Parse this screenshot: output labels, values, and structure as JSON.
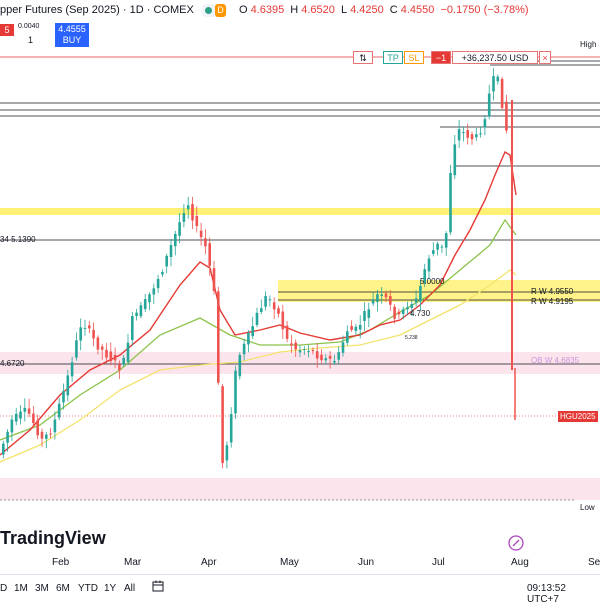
{
  "header": {
    "title": "pper Futures (Sep 2025) · 1D · COMEX",
    "ohlc": {
      "open_label": "O",
      "open": "4.6395",
      "high_label": "H",
      "high": "4.6520",
      "low_label": "L",
      "low": "4.4250",
      "close_label": "C",
      "close": "4.4550",
      "change": "−0.1750 (−3.78%)"
    },
    "interval_badge": "D"
  },
  "trade_panel": {
    "sell_label": "5",
    "spread": "0.0040",
    "quantity": "1",
    "buy_price": "4.4555",
    "buy_label": "BUY"
  },
  "order_bar": {
    "flip_icon": "⇅",
    "tp": "TP",
    "sl": "SL",
    "qty": "−1",
    "pnl": "+36,237.50 USD",
    "close": "×"
  },
  "price_labels": {
    "high": "High",
    "low": "Low",
    "ma": "34 5.1390",
    "left_level": "4.6720",
    "rw1": "R W 4.9550",
    "rw2": "R W 4.9195",
    "ob": "OB W 4.6835",
    "five": "5.0000",
    "mid": "4.730",
    "small": "5.238",
    "symbol_tag": "HGU2025"
  },
  "colors": {
    "up": "#26a69a",
    "down": "#ef5350",
    "ma_red": "#e53935",
    "ma_green": "#8bc34a",
    "ma_yellow": "#f4e36b",
    "zone_yellow": "#fff176",
    "zone_pink": "#fce4ec"
  },
  "brand": "TradingView",
  "time_axis": [
    "Feb",
    "Mar",
    "Apr",
    "May",
    "Jun",
    "Jul",
    "Aug",
    "Se"
  ],
  "bottom_bar": {
    "ranges": [
      "D",
      "1M",
      "3M",
      "6M",
      "YTD",
      "1Y",
      "All"
    ],
    "clock": "09:13:52 UTC+7"
  }
}
